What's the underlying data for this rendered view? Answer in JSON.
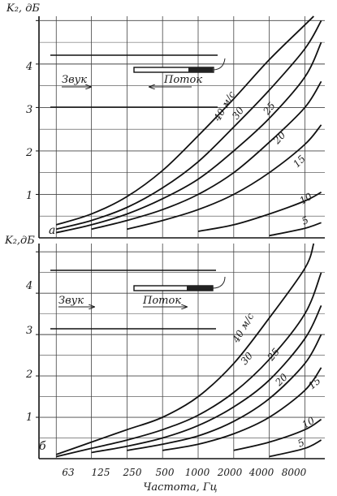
{
  "x_axis_label": "Частота, Гц",
  "x_ticks": [
    "63",
    "125",
    "250",
    "500",
    "1000",
    "2000",
    "4000",
    "8000"
  ],
  "chart_data": [
    {
      "type": "line",
      "panel_letter": "а",
      "ylabel": "K₂, дБ",
      "y_ticks": [
        "1",
        "2",
        "3",
        "4"
      ],
      "ylim": [
        0,
        5.1
      ],
      "xlim": [
        45,
        11800
      ],
      "x_scale": "log",
      "grid": true,
      "inset": {
        "sound_label": "Звук",
        "flow_label": "Поток",
        "sound_direction": "right",
        "flow_direction": "left"
      },
      "series_label_suffix": "м/с",
      "series": [
        {
          "name": "40",
          "x": [
            63,
            125,
            250,
            500,
            1000,
            2000,
            4000,
            8000,
            9500
          ],
          "values": [
            0.3,
            0.55,
            0.95,
            1.55,
            2.35,
            3.2,
            4.1,
            4.9,
            5.1
          ]
        },
        {
          "name": "30",
          "x": [
            63,
            125,
            250,
            500,
            1000,
            2000,
            4000,
            8000,
            11000
          ],
          "values": [
            0.2,
            0.4,
            0.7,
            1.15,
            1.75,
            2.55,
            3.4,
            4.35,
            5.0
          ]
        },
        {
          "name": "25",
          "x": [
            63,
            125,
            250,
            500,
            1000,
            2000,
            4000,
            8000,
            11000
          ],
          "values": [
            0.12,
            0.3,
            0.55,
            0.9,
            1.35,
            2.0,
            2.75,
            3.7,
            4.5
          ]
        },
        {
          "name": "20",
          "x": [
            125,
            250,
            500,
            1000,
            2000,
            4000,
            8000,
            11000
          ],
          "values": [
            0.2,
            0.4,
            0.65,
            1.0,
            1.5,
            2.2,
            3.0,
            3.6
          ]
        },
        {
          "name": "15",
          "x": [
            250,
            500,
            1000,
            2000,
            4000,
            8000,
            11000
          ],
          "values": [
            0.2,
            0.4,
            0.65,
            1.0,
            1.5,
            2.15,
            2.6
          ]
        },
        {
          "name": "10",
          "x": [
            1000,
            2000,
            4000,
            8000,
            11000
          ],
          "values": [
            0.15,
            0.3,
            0.55,
            0.85,
            1.05
          ]
        },
        {
          "name": "5",
          "x": [
            4000,
            8000,
            11000
          ],
          "values": [
            0.05,
            0.22,
            0.35
          ]
        }
      ]
    },
    {
      "type": "line",
      "panel_letter": "б",
      "ylabel": "K₂,дБ",
      "y_ticks": [
        "1",
        "2",
        "3",
        "4"
      ],
      "ylim": [
        0,
        5.2
      ],
      "xlim": [
        45,
        11800
      ],
      "x_scale": "log",
      "grid": true,
      "inset": {
        "sound_label": "Звук",
        "flow_label": "Поток",
        "sound_direction": "right",
        "flow_direction": "right"
      },
      "series_label_suffix": "м/с",
      "series": [
        {
          "name": "40",
          "x": [
            63,
            125,
            250,
            500,
            1000,
            2000,
            4000,
            8000,
            9500
          ],
          "values": [
            0.1,
            0.4,
            0.7,
            1.0,
            1.5,
            2.3,
            3.4,
            4.6,
            5.2
          ]
        },
        {
          "name": "30",
          "x": [
            63,
            125,
            250,
            500,
            1000,
            2000,
            4000,
            8000,
            11000
          ],
          "values": [
            0.05,
            0.25,
            0.45,
            0.7,
            1.05,
            1.6,
            2.4,
            3.5,
            4.5
          ]
        },
        {
          "name": "25",
          "x": [
            125,
            250,
            500,
            1000,
            2000,
            4000,
            8000,
            11000
          ],
          "values": [
            0.15,
            0.3,
            0.5,
            0.8,
            1.25,
            1.9,
            2.9,
            3.7
          ]
        },
        {
          "name": "20",
          "x": [
            250,
            500,
            1000,
            2000,
            4000,
            8000,
            11000
          ],
          "values": [
            0.2,
            0.35,
            0.55,
            0.9,
            1.45,
            2.3,
            3.0
          ]
        },
        {
          "name": "15",
          "x": [
            500,
            1000,
            2000,
            4000,
            8000,
            11000
          ],
          "values": [
            0.2,
            0.35,
            0.6,
            1.0,
            1.65,
            2.2
          ]
        },
        {
          "name": "10",
          "x": [
            2000,
            4000,
            8000,
            11000
          ],
          "values": [
            0.2,
            0.4,
            0.7,
            0.95
          ]
        },
        {
          "name": "5",
          "x": [
            4000,
            8000,
            11000
          ],
          "values": [
            0.05,
            0.25,
            0.45
          ]
        }
      ]
    }
  ]
}
